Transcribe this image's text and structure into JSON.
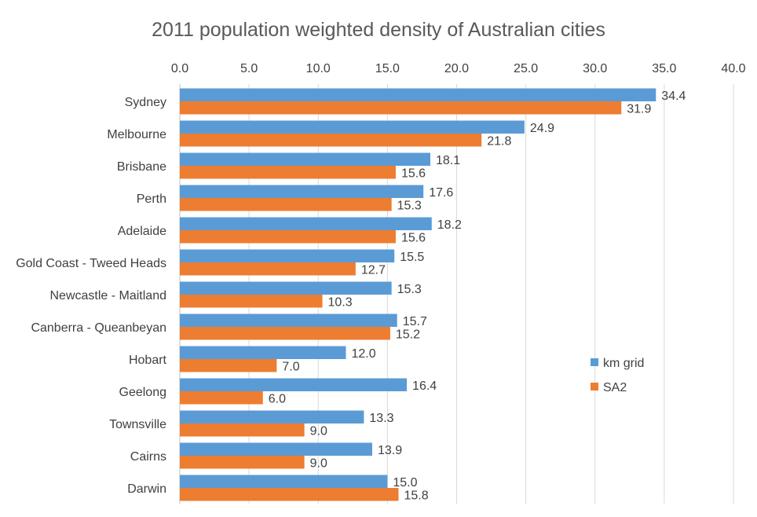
{
  "chart_data": {
    "type": "bar",
    "orientation": "horizontal",
    "title": "2011 population weighted density of Australian cities",
    "xlabel": "",
    "ylabel": "",
    "xlim": [
      0,
      40
    ],
    "xticks": [
      "0.0",
      "5.0",
      "10.0",
      "15.0",
      "20.0",
      "25.0",
      "30.0",
      "35.0",
      "40.0"
    ],
    "xtick_values": [
      0,
      5,
      10,
      15,
      20,
      25,
      30,
      35,
      40
    ],
    "grid": true,
    "legend_position": "right",
    "categories": [
      "Sydney",
      "Melbourne",
      "Brisbane",
      "Perth",
      "Adelaide",
      "Gold Coast - Tweed Heads",
      "Newcastle - Maitland",
      "Canberra - Queanbeyan",
      "Hobart",
      "Geelong",
      "Townsville",
      "Cairns",
      "Darwin"
    ],
    "series": [
      {
        "name": "km grid",
        "color": "#5b9bd5",
        "values": [
          34.4,
          24.9,
          18.1,
          17.6,
          18.2,
          15.5,
          15.3,
          15.7,
          12.0,
          16.4,
          13.3,
          13.9,
          15.0
        ]
      },
      {
        "name": "SA2",
        "color": "#ed7d31",
        "values": [
          31.9,
          21.8,
          15.6,
          15.3,
          15.6,
          12.7,
          10.3,
          15.2,
          7.0,
          6.0,
          9.0,
          9.0,
          15.8
        ]
      }
    ]
  }
}
